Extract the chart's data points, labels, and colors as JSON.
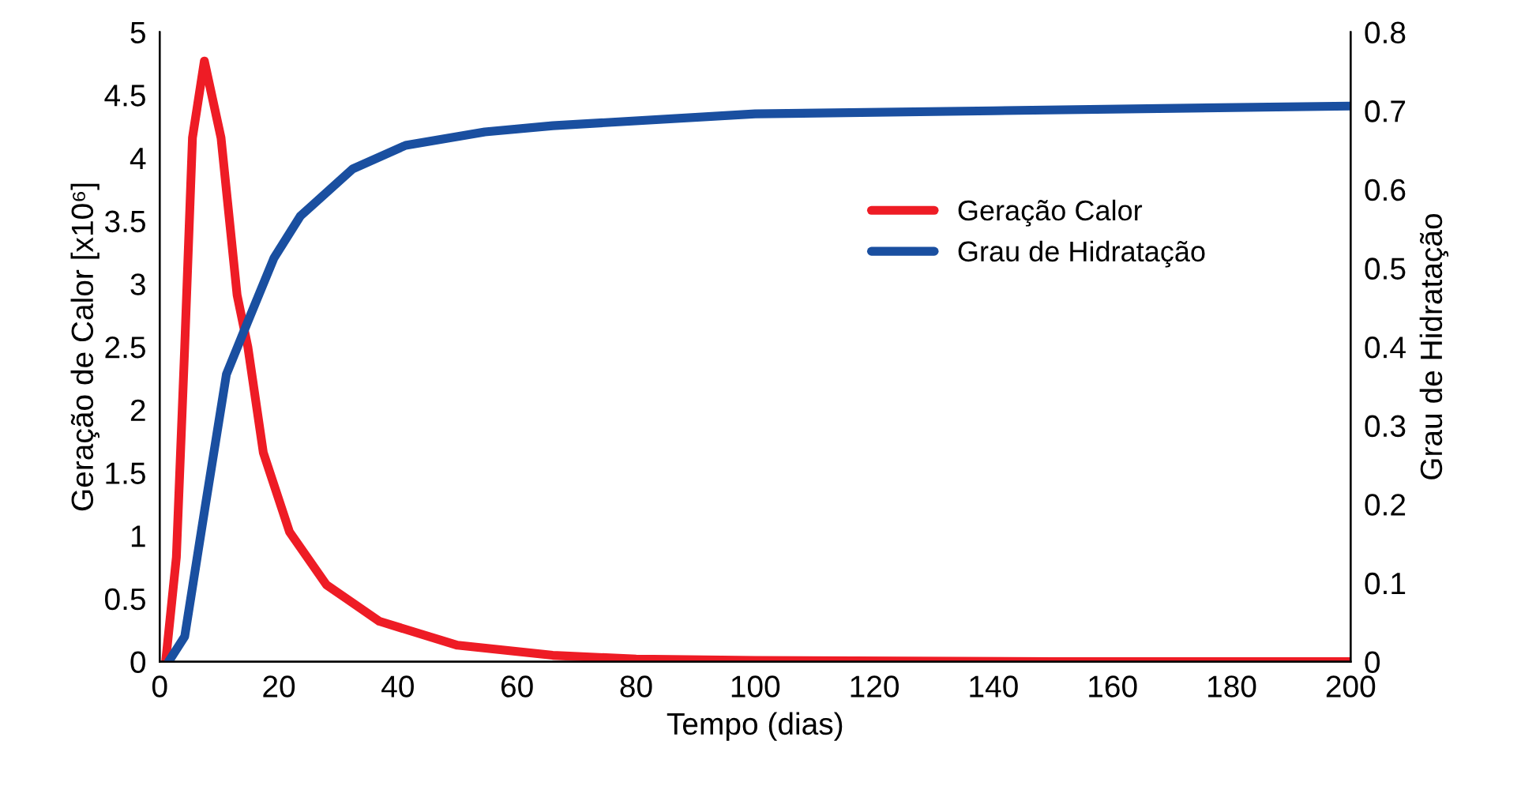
{
  "chart_data": {
    "type": "line",
    "xlabel": "Tempo (dias)",
    "ylabel": "Geração de Calor [x10⁶]",
    "y2label": "Grau de Hidratação",
    "xlim": [
      0,
      200
    ],
    "xticks": [
      0,
      20,
      40,
      60,
      80,
      100,
      120,
      140,
      160,
      180,
      200
    ],
    "ylim": [
      0,
      5
    ],
    "yticks": [
      0,
      0.5,
      1,
      1.5,
      2,
      2.5,
      3,
      3.5,
      4,
      4.5,
      5
    ],
    "y2lim": [
      0,
      0.8
    ],
    "y2ticks": [
      0,
      0.1,
      0.2,
      0.3,
      0.4,
      0.5,
      0.6,
      0.7,
      0.8
    ],
    "grid": false,
    "legend": "right",
    "marker": "none",
    "line_style": "solid",
    "series": [
      {
        "name": "Geração Calor",
        "color": "#ee1c25",
        "x": [
          1,
          2.8,
          4.2,
          5.5,
          7.5,
          10.3,
          13,
          14.8,
          17.4,
          21.8,
          28,
          36.9,
          50,
          66,
          80,
          100,
          150,
          200
        ],
        "values": [
          0,
          0.83,
          2.5,
          4.16,
          4.77,
          4.16,
          2.91,
          2.5,
          1.66,
          1.03,
          0.61,
          0.32,
          0.13,
          0.05,
          0.02,
          0.01,
          0,
          0
        ]
      },
      {
        "name": "Grau de Hidratação",
        "color": "#1a4fa0",
        "axis": "y2",
        "x": [
          1.5,
          4.2,
          7.7,
          11.2,
          14.8,
          19.2,
          23.6,
          32.4,
          41.3,
          54.6,
          66,
          100,
          140,
          200
        ],
        "values": [
          0,
          0.032,
          0.2,
          0.365,
          0.432,
          0.513,
          0.566,
          0.626,
          0.656,
          0.673,
          0.681,
          0.696,
          0.7,
          0.706
        ]
      }
    ]
  }
}
